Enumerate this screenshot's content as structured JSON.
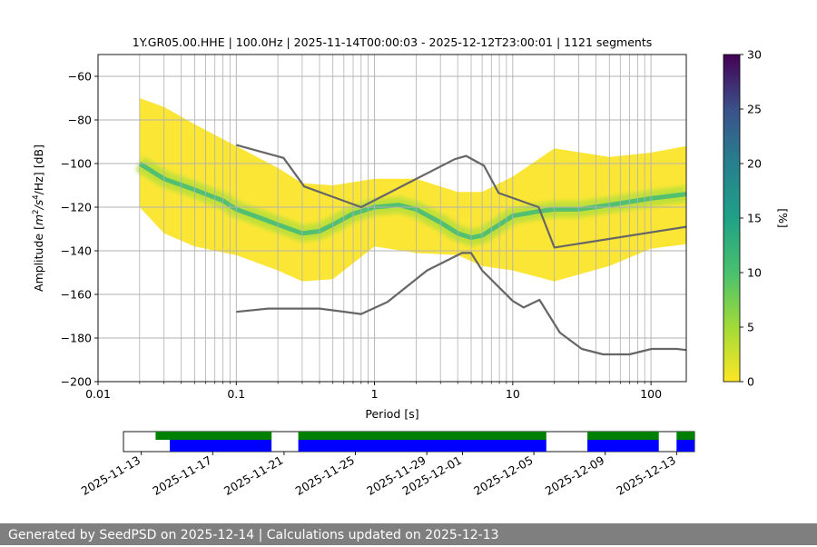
{
  "chart_data": [
    {
      "type": "heatmap",
      "title": "1Y.GR05.00.HHE | 100.0Hz | 2025-11-14T00:00:03 - 2025-12-12T23:00:01 | 1121 segments",
      "xlabel": "Period [s]",
      "ylabel_prefix": "Amplitude [",
      "ylabel_unit_m": "m",
      "ylabel_exp_m": "2",
      "ylabel_unit_s": "/s",
      "ylabel_exp_s": "4",
      "ylabel_unit_hz": "/Hz] [dB]",
      "x_scale": "log",
      "xlim": [
        0.01,
        180
      ],
      "ylim": [
        -200,
        -50
      ],
      "x_ticks": [
        0.01,
        0.1,
        1,
        10,
        100
      ],
      "x_tick_labels": [
        "0.01",
        "0.1",
        "1",
        "10",
        "100"
      ],
      "y_ticks": [
        -200,
        -180,
        -160,
        -140,
        -120,
        -100,
        -80,
        -60
      ],
      "y_tick_labels": [
        "−200",
        "−180",
        "−160",
        "−140",
        "−120",
        "−100",
        "−80",
        "−60"
      ],
      "grid": true,
      "colorbar": {
        "label": "[%]",
        "range": [
          0,
          30
        ],
        "ticks": [
          0,
          5,
          10,
          15,
          20,
          25,
          30
        ],
        "colormap": "viridis_r",
        "colors": [
          "#fde725",
          "#5ec962",
          "#21918c",
          "#3b528b",
          "#440154"
        ]
      },
      "psd_mode": {
        "x": [
          0.02,
          0.03,
          0.05,
          0.08,
          0.1,
          0.15,
          0.2,
          0.3,
          0.4,
          0.5,
          0.7,
          1.0,
          1.5,
          2,
          3,
          4,
          5,
          6,
          8,
          10,
          15,
          20,
          30,
          50,
          100,
          180
        ],
        "y": [
          -100,
          -107,
          -112,
          -117,
          -121,
          -125,
          -128,
          -132,
          -131,
          -128,
          -123,
          -120,
          -119,
          -121,
          -127,
          -132,
          -134,
          -133,
          -128,
          -124,
          -122,
          -121,
          -121,
          -119,
          -116,
          -114
        ]
      },
      "psd_spread": {
        "x": [
          0.02,
          0.03,
          0.05,
          0.1,
          0.2,
          0.3,
          0.5,
          1,
          2,
          4,
          6,
          10,
          20,
          50,
          100,
          180
        ],
        "upper": [
          -70,
          -74,
          -82,
          -92,
          -102,
          -109,
          -110,
          -107,
          -107,
          -113,
          -113,
          -106,
          -93,
          -97,
          -95,
          -92
        ],
        "lower": [
          -120,
          -132,
          -138,
          -142,
          -149,
          -154,
          -153,
          -138,
          -141,
          -142,
          -147,
          -149,
          -154,
          -147,
          -139,
          -137
        ]
      },
      "series": [
        {
          "name": "",
          "color": "#666666",
          "x": [
            0.1,
            0.22,
            0.31,
            0.8,
            3.8,
            4.6,
            6.2,
            7.9,
            15.4,
            20,
            180
          ],
          "y": [
            -91.5,
            -97.4,
            -110.5,
            -120,
            -98,
            -96.5,
            -101,
            -113.5,
            -120,
            -138.5,
            -129
          ]
        },
        {
          "name": "",
          "color": "#666666",
          "x": [
            0.1,
            0.17,
            0.4,
            0.8,
            1.24,
            2.4,
            4.3,
            5.0,
            6.0,
            10,
            12,
            15.6,
            21.9,
            31.6,
            45,
            70,
            101,
            154,
            180
          ],
          "y": [
            -168,
            -166.5,
            -166.5,
            -169,
            -163.5,
            -149,
            -141,
            -141,
            -149,
            -163,
            -166,
            -162.5,
            -177.5,
            -185,
            -187.5,
            -187.5,
            -185,
            -185,
            -185.5
          ]
        }
      ]
    },
    {
      "type": "timeline",
      "x_ticks": [
        "2025-11-13",
        "2025-11-17",
        "2025-11-21",
        "2025-11-25",
        "2025-11-29",
        "2025-12-01",
        "2025-12-05",
        "2025-12-09",
        "2025-12-13"
      ],
      "x_range": [
        "2025-11-12",
        "2025-12-14"
      ],
      "green_color": "#008000",
      "blue_color": "#0000ff",
      "green_intervals": [
        [
          "2025-11-13.8",
          "2025-11-20.3"
        ],
        [
          "2025-11-21.8",
          "2025-12-05.7"
        ],
        [
          "2025-12-08.0",
          "2025-12-12.0"
        ],
        [
          "2025-12-13.0",
          "2025-12-14.0"
        ]
      ],
      "blue_intervals": [
        [
          "2025-11-14.6",
          "2025-11-20.3"
        ],
        [
          "2025-11-21.8",
          "2025-12-05.7"
        ],
        [
          "2025-12-08.0",
          "2025-12-12.0"
        ],
        [
          "2025-12-13.0",
          "2025-12-14.0"
        ]
      ]
    }
  ],
  "footer": "Generated by SeedPSD on 2025-12-14 | Calculations updated on 2025-12-13"
}
